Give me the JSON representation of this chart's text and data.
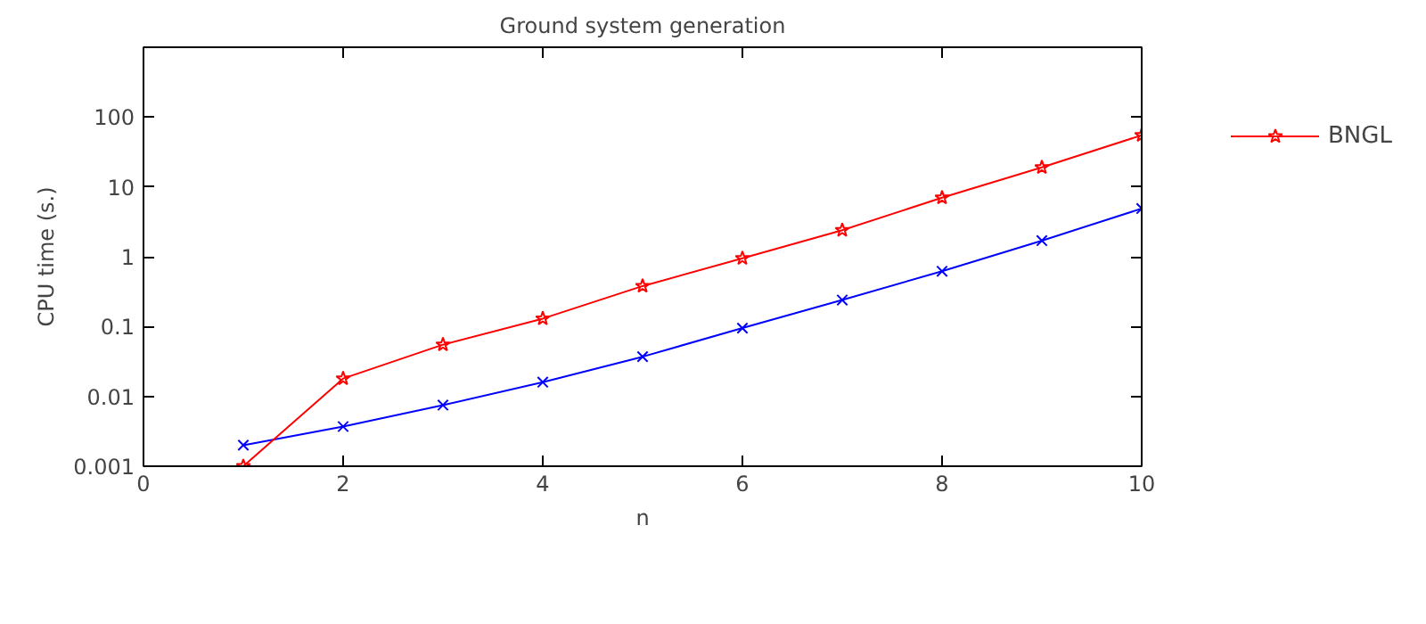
{
  "chart_data": {
    "type": "line",
    "title": "Ground system generation",
    "xlabel": "n",
    "ylabel": "CPU time (s.)",
    "log": "y",
    "grid": false,
    "legend": "top right",
    "xlim": [
      0,
      10
    ],
    "xticks": [
      0,
      2,
      4,
      6,
      8,
      10
    ],
    "ylim": [
      0.001,
      1000
    ],
    "yticks": [
      0.001,
      0.01,
      0.1,
      1,
      10,
      100
    ],
    "x": [
      1,
      2,
      3,
      4,
      5,
      6,
      7,
      8,
      9,
      10
    ],
    "series": [
      {
        "color": "#0000ff",
        "marker": "cross",
        "values": [
          0.002,
          0.0037,
          0.0075,
          0.016,
          0.037,
          0.095,
          0.24,
          0.62,
          1.7,
          4.9
        ]
      },
      {
        "name": "BNGL",
        "color": "#ff0000",
        "marker": "star",
        "values": [
          0.001,
          0.018,
          0.055,
          0.13,
          0.38,
          0.95,
          2.4,
          7,
          19,
          55
        ]
      }
    ]
  }
}
